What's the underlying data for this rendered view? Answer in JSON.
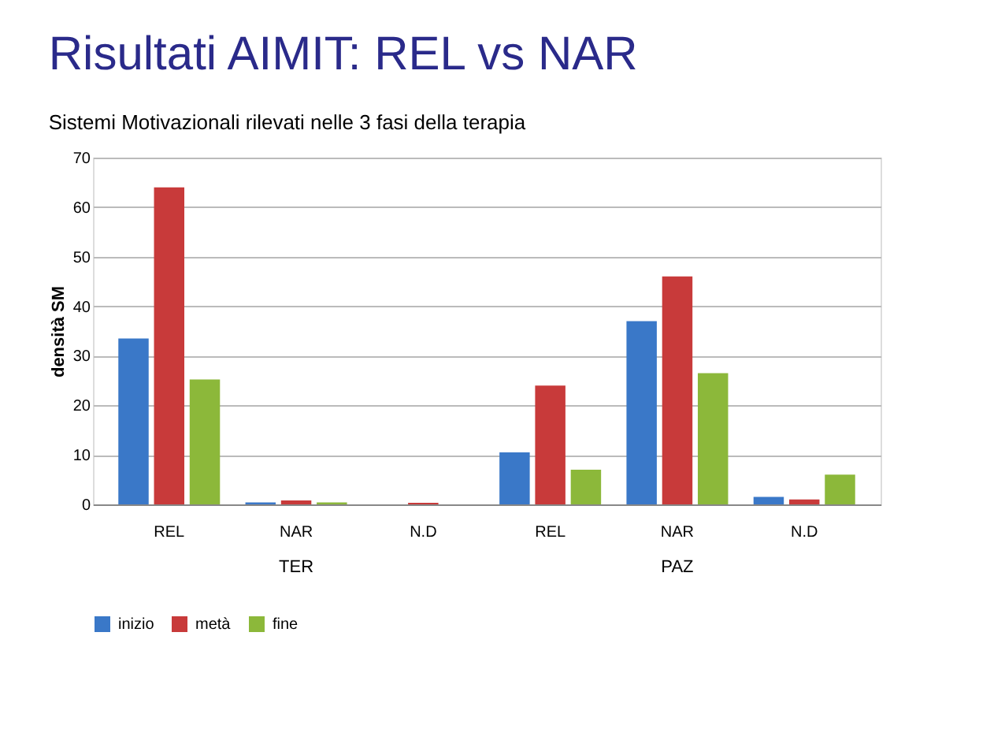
{
  "chart_data": {
    "type": "bar",
    "title": "Risultati AIMIT: REL vs NAR",
    "subtitle": "Sistemi Motivazionali rilevati nelle 3 fasi della terapia",
    "ylabel": "densità SM",
    "categories": [
      "REL",
      "NAR",
      "N.D",
      "REL",
      "NAR",
      "N.D"
    ],
    "annotations": [
      "TER",
      "PAZ"
    ],
    "series": [
      {
        "name": "inizio",
        "color": "#3a78c8",
        "values": [
          33.5,
          0.4,
          0,
          10.5,
          37,
          1.5
        ]
      },
      {
        "name": "metà",
        "color": "#c83a3a",
        "values": [
          64,
          0.8,
          0.3,
          24,
          46,
          1
        ]
      },
      {
        "name": "fine",
        "color": "#8cb83a",
        "values": [
          25.2,
          0.4,
          0,
          7,
          26.5,
          6
        ]
      }
    ],
    "ylim": [
      0,
      70
    ],
    "yticks": [
      0,
      10,
      20,
      30,
      40,
      50,
      60,
      70
    ],
    "grid": "y",
    "legend": "bottom"
  }
}
